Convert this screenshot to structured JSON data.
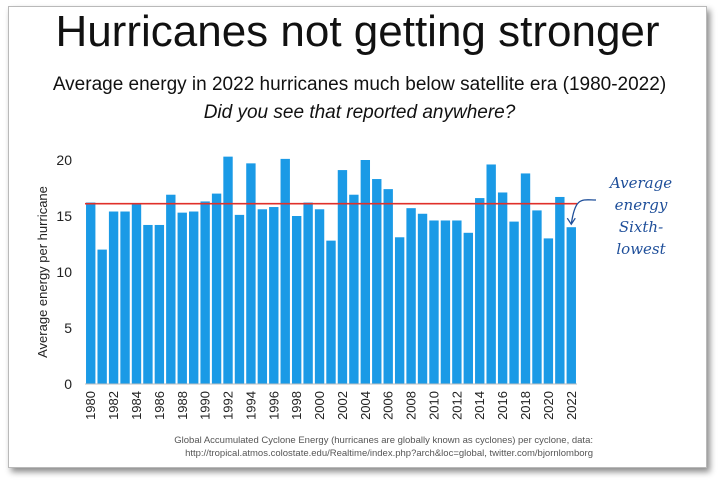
{
  "header": {
    "title": "Hurricanes not getting stronger",
    "subtitle": "Average energy in 2022 hurricanes much below satellite era (1980-2022)",
    "question": "Did you see that reported anywhere?"
  },
  "source": {
    "line1": "Global Accumulated Cyclone Energy (hurricanes are globally known as cyclones) per cyclone, data:",
    "line2": "http://tropical.atmos.colostate.edu/Realtime/index.php?arch&loc=global, twitter.com/bjornlomborg"
  },
  "annotation": {
    "lines": [
      "Average",
      "energy",
      "Sixth-",
      "lowest"
    ],
    "color": "#1f4f9a"
  },
  "chart_data": {
    "type": "bar",
    "title": "",
    "xlabel": "",
    "ylabel": "Average energy per hurricane",
    "ylim": [
      0,
      20
    ],
    "yticks": [
      0,
      5,
      10,
      15,
      20
    ],
    "grid": false,
    "bar_color": "#1a9ae6",
    "reference_line": {
      "value": 16.1,
      "color": "#e0302a"
    },
    "x": [
      1980,
      1981,
      1982,
      1983,
      1984,
      1985,
      1986,
      1987,
      1988,
      1989,
      1990,
      1991,
      1992,
      1993,
      1994,
      1995,
      1996,
      1997,
      1998,
      1999,
      2000,
      2001,
      2002,
      2003,
      2004,
      2005,
      2006,
      2007,
      2008,
      2009,
      2010,
      2011,
      2012,
      2013,
      2014,
      2015,
      2016,
      2017,
      2018,
      2019,
      2020,
      2021,
      2022
    ],
    "x_tick_labels": [
      "1980",
      "1982",
      "1984",
      "1986",
      "1988",
      "1990",
      "1992",
      "1994",
      "1996",
      "1998",
      "2000",
      "2002",
      "2004",
      "2006",
      "2008",
      "2010",
      "2012",
      "2014",
      "2016",
      "2018",
      "2020",
      "2022"
    ],
    "values": [
      16.2,
      12.0,
      15.4,
      15.4,
      16.1,
      14.2,
      14.2,
      16.9,
      15.3,
      15.4,
      16.3,
      17.0,
      20.3,
      15.1,
      19.7,
      15.6,
      15.8,
      20.1,
      15.0,
      16.2,
      15.6,
      12.8,
      19.1,
      16.9,
      20.0,
      18.3,
      17.4,
      13.1,
      15.7,
      15.2,
      14.6,
      14.6,
      14.6,
      13.5,
      16.6,
      19.6,
      17.1,
      14.5,
      18.8,
      15.5,
      13.0,
      16.7,
      14.0
    ]
  }
}
